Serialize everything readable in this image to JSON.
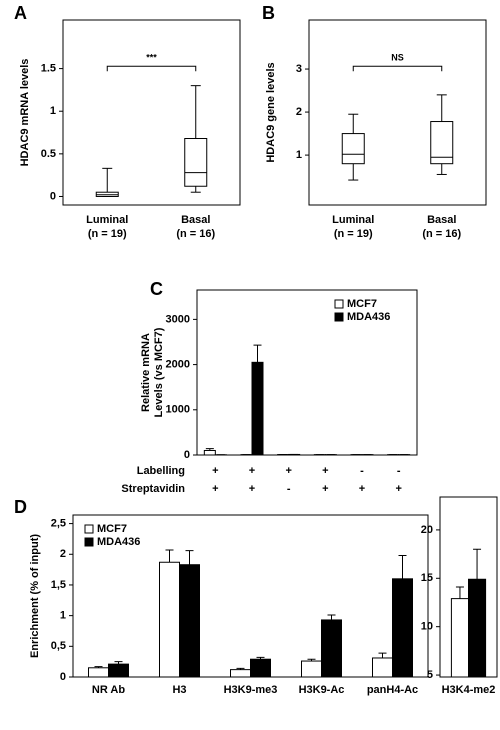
{
  "chart_data": [
    {
      "type": "box",
      "panel": "A",
      "ylabel": [
        "HDAC9 mRNA levels"
      ],
      "categories": [
        "Luminal",
        "Basal"
      ],
      "category_notes": [
        "(n = 19)",
        "(n = 16)"
      ],
      "boxes": [
        {
          "min": 0,
          "q1": 0.0,
          "median": 0.02,
          "q3": 0.05,
          "max": 0.33
        },
        {
          "min": 0.05,
          "q1": 0.12,
          "median": 0.28,
          "q3": 0.68,
          "max": 1.3
        }
      ],
      "annotation": "***",
      "ylim": [
        -0.1,
        2.07
      ],
      "yticks": [
        0,
        0.5,
        1,
        1.5
      ]
    },
    {
      "type": "box",
      "panel": "B",
      "ylabel": [
        "HDAC9 gene levels"
      ],
      "categories": [
        "Luminal",
        "Basal"
      ],
      "category_notes": [
        "(n = 19)",
        "(n = 16)"
      ],
      "boxes": [
        {
          "min": 0.42,
          "q1": 0.8,
          "median": 1.02,
          "q3": 1.5,
          "max": 1.95
        },
        {
          "min": 0.55,
          "q1": 0.8,
          "median": 0.95,
          "q3": 1.78,
          "max": 2.4
        }
      ],
      "annotation": "NS",
      "ylim": [
        -0.16,
        4.14
      ],
      "yticks": [
        1,
        2,
        3
      ]
    },
    {
      "type": "bar",
      "panel": "C",
      "ylabel": [
        "Relative mRNA",
        "Levels (vs MCF7)"
      ],
      "row_labels": [
        "Labelling",
        "Streptavidin"
      ],
      "rows": [
        [
          "+",
          "+",
          "+",
          "+",
          "-",
          "-"
        ],
        [
          "+",
          "+",
          "-",
          "+",
          "+",
          "+"
        ]
      ],
      "series": [
        {
          "name": "MCF7",
          "color": "#ffffff",
          "values": [
            100,
            8,
            10,
            8,
            8,
            8
          ],
          "errors": [
            40,
            0,
            0,
            0,
            0,
            0
          ]
        },
        {
          "name": "MDA436",
          "color": "#000000",
          "values": [
            5,
            2050,
            12,
            8,
            8,
            8
          ],
          "errors": [
            0,
            380,
            0,
            0,
            0,
            0
          ]
        }
      ],
      "legend": "upper right",
      "ylim": [
        0,
        3650
      ],
      "yticks": [
        0,
        1000,
        2000,
        3000
      ]
    },
    {
      "type": "bar",
      "panel": "D",
      "ylabel": [
        "Enrichment (% of input)"
      ],
      "categories": [
        "NR Ab",
        "H3",
        "H3K9-me3",
        "H3K9-Ac",
        "panH4-Ac"
      ],
      "series": [
        {
          "name": "MCF7",
          "color": "#ffffff",
          "values": [
            0.15,
            1.87,
            0.12,
            0.26,
            0.31
          ],
          "errors": [
            0.02,
            0.2,
            0.02,
            0.03,
            0.08
          ]
        },
        {
          "name": "MDA436",
          "color": "#000000",
          "values": [
            0.21,
            1.83,
            0.29,
            0.93,
            1.6
          ],
          "errors": [
            0.04,
            0.23,
            0.03,
            0.08,
            0.38
          ]
        }
      ],
      "legend": "upper left",
      "ylim": [
        0,
        2.64
      ],
      "yticks": [
        0,
        {
          "value": 0.5,
          "label": "0,5"
        },
        1,
        {
          "value": 1.5,
          "label": "1,5"
        },
        2,
        {
          "value": 2.5,
          "label": "2,5"
        }
      ]
    },
    {
      "type": "bar",
      "categories": [
        "H3K4-me2"
      ],
      "series": [
        {
          "name": "MCF7",
          "color": "#ffffff",
          "values": [
            12.9
          ],
          "errors": [
            1.2
          ]
        },
        {
          "name": "MDA436",
          "color": "#000000",
          "values": [
            14.9
          ],
          "errors": [
            3.1
          ]
        }
      ],
      "ylim": [
        4.8,
        23.4
      ],
      "yticks": [
        5,
        10,
        15,
        20
      ]
    }
  ]
}
